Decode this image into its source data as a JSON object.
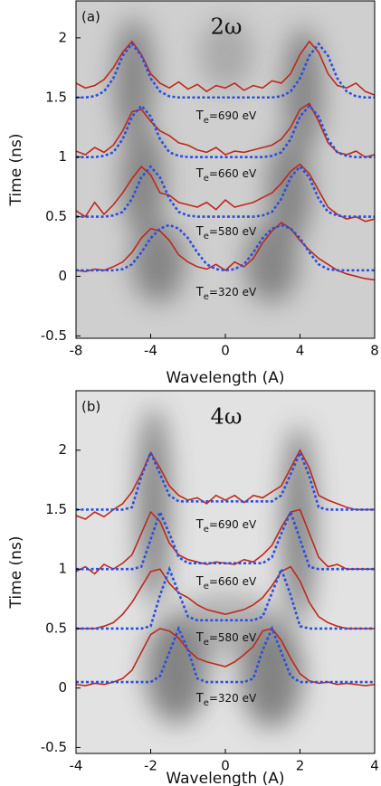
{
  "chart_data": [
    {
      "type": "line",
      "label": "(a)",
      "title": "2ω",
      "xlabel": "Wavelength (A)",
      "ylabel": "Time (ns)",
      "xlim": [
        -8,
        8
      ],
      "xticks": [
        -8,
        -4,
        0,
        4,
        8
      ],
      "ylim": [
        -0.52,
        2.31
      ],
      "yticks": [
        -0.5,
        0,
        0.5,
        1,
        1.5,
        2
      ],
      "x": [
        -8,
        -7.5,
        -7,
        -6.5,
        -6,
        -5.5,
        -5,
        -4.5,
        -4,
        -3.5,
        -3,
        -2.5,
        -2,
        -1.5,
        -1,
        -0.5,
        0,
        0.5,
        1,
        1.5,
        2,
        2.5,
        3,
        3.5,
        4,
        4.5,
        5,
        5.5,
        6,
        6.5,
        7,
        7.5,
        8
      ],
      "series": [
        {
          "color": "#c0281b",
          "style": "solid",
          "values": [
            1.62,
            1.58,
            1.6,
            1.65,
            1.75,
            1.88,
            1.97,
            1.86,
            1.7,
            1.62,
            1.58,
            1.63,
            1.57,
            1.61,
            1.55,
            1.6,
            1.58,
            1.62,
            1.56,
            1.6,
            1.58,
            1.64,
            1.62,
            1.7,
            1.86,
            1.97,
            1.88,
            1.7,
            1.6,
            1.58,
            1.62,
            1.55,
            1.52
          ]
        },
        {
          "color": "#c0281b",
          "style": "solid",
          "values": [
            1.05,
            1.02,
            1.08,
            1.04,
            1.1,
            1.22,
            1.38,
            1.4,
            1.3,
            1.22,
            1.18,
            1.12,
            1.1,
            1.06,
            1.04,
            1.08,
            1.02,
            1.05,
            1.04,
            1.06,
            1.08,
            1.1,
            1.15,
            1.25,
            1.4,
            1.45,
            1.3,
            1.12,
            1.04,
            1.02,
            1.05,
            1.0,
            1.02
          ]
        },
        {
          "color": "#c0281b",
          "style": "solid",
          "values": [
            0.55,
            0.5,
            0.62,
            0.52,
            0.6,
            0.7,
            0.82,
            0.92,
            0.85,
            0.7,
            0.68,
            0.62,
            0.6,
            0.58,
            0.62,
            0.56,
            0.64,
            0.58,
            0.6,
            0.62,
            0.66,
            0.7,
            0.78,
            0.88,
            0.94,
            0.86,
            0.72,
            0.58,
            0.52,
            0.48,
            0.5,
            0.46,
            0.48
          ]
        },
        {
          "color": "#c0281b",
          "style": "solid",
          "values": [
            0.05,
            0.04,
            0.06,
            0.05,
            0.08,
            0.12,
            0.2,
            0.32,
            0.4,
            0.38,
            0.3,
            0.18,
            0.12,
            0.08,
            0.06,
            0.1,
            0.05,
            0.12,
            0.08,
            0.15,
            0.28,
            0.38,
            0.45,
            0.4,
            0.3,
            0.22,
            0.15,
            0.1,
            0.05,
            0.02,
            0.0,
            -0.02,
            -0.03
          ]
        },
        {
          "color": "#2a4fe0",
          "style": "dotted",
          "values": [
            1.5,
            1.5,
            1.51,
            1.55,
            1.66,
            1.85,
            1.95,
            1.85,
            1.66,
            1.55,
            1.51,
            1.5,
            1.5,
            1.5,
            1.5,
            1.5,
            1.5,
            1.5,
            1.5,
            1.5,
            1.5,
            1.5,
            1.51,
            1.55,
            1.66,
            1.85,
            1.95,
            1.85,
            1.66,
            1.55,
            1.51,
            1.5,
            1.5
          ]
        },
        {
          "color": "#2a4fe0",
          "style": "dotted",
          "values": [
            1.0,
            1.0,
            1.0,
            1.01,
            1.04,
            1.15,
            1.34,
            1.43,
            1.34,
            1.15,
            1.04,
            1.01,
            1.0,
            1.0,
            1.0,
            1.0,
            1.0,
            1.0,
            1.0,
            1.0,
            1.0,
            1.01,
            1.04,
            1.15,
            1.34,
            1.43,
            1.34,
            1.15,
            1.04,
            1.01,
            1.0,
            1.0,
            1.0
          ]
        },
        {
          "color": "#2a4fe0",
          "style": "dotted",
          "values": [
            0.5,
            0.5,
            0.5,
            0.5,
            0.51,
            0.54,
            0.65,
            0.83,
            0.92,
            0.83,
            0.65,
            0.54,
            0.51,
            0.5,
            0.5,
            0.5,
            0.5,
            0.5,
            0.5,
            0.5,
            0.51,
            0.54,
            0.65,
            0.83,
            0.92,
            0.83,
            0.65,
            0.54,
            0.51,
            0.5,
            0.5,
            0.5,
            0.5
          ]
        },
        {
          "color": "#2a4fe0",
          "style": "dotted",
          "values": [
            0.05,
            0.05,
            0.05,
            0.05,
            0.05,
            0.06,
            0.1,
            0.2,
            0.32,
            0.4,
            0.43,
            0.4,
            0.32,
            0.2,
            0.1,
            0.06,
            0.05,
            0.06,
            0.1,
            0.2,
            0.32,
            0.4,
            0.43,
            0.4,
            0.32,
            0.2,
            0.1,
            0.06,
            0.05,
            0.05,
            0.05,
            0.05,
            0.05
          ]
        }
      ],
      "annotations": [
        {
          "base": "T",
          "sub": "e",
          "text": "=690 eV"
        },
        {
          "base": "T",
          "sub": "e",
          "text": "=660 eV"
        },
        {
          "base": "T",
          "sub": "e",
          "text": "=580 eV"
        },
        {
          "base": "T",
          "sub": "e",
          "text": "=320 eV"
        }
      ]
    },
    {
      "type": "line",
      "label": "(b)",
      "title": "4ω",
      "xlabel": "Wavelength (A)",
      "ylabel": "Time (ns)",
      "xlim": [
        -4,
        4
      ],
      "xticks": [
        -4,
        -2,
        0,
        2,
        4
      ],
      "ylim": [
        -0.55,
        2.5
      ],
      "yticks": [
        -0.5,
        0,
        0.5,
        1,
        1.5,
        2
      ],
      "x": [
        -4,
        -3.75,
        -3.5,
        -3.25,
        -3,
        -2.75,
        -2.5,
        -2.25,
        -2,
        -1.75,
        -1.5,
        -1.25,
        -1,
        -0.75,
        -0.5,
        -0.25,
        0,
        0.25,
        0.5,
        0.75,
        1,
        1.25,
        1.5,
        1.75,
        2,
        2.25,
        2.5,
        2.75,
        3,
        3.25,
        3.5,
        3.75,
        4
      ],
      "series": [
        {
          "color": "#c0281b",
          "style": "solid",
          "values": [
            1.45,
            1.42,
            1.48,
            1.44,
            1.5,
            1.55,
            1.65,
            1.8,
            1.98,
            1.85,
            1.7,
            1.62,
            1.58,
            1.6,
            1.55,
            1.62,
            1.58,
            1.62,
            1.56,
            1.62,
            1.6,
            1.65,
            1.7,
            1.85,
            2.0,
            1.85,
            1.62,
            1.58,
            1.55,
            1.52,
            1.5,
            1.5,
            1.5
          ]
        },
        {
          "color": "#c0281b",
          "style": "solid",
          "values": [
            0.98,
            1.02,
            0.96,
            1.04,
            1.0,
            1.05,
            1.12,
            1.3,
            1.48,
            1.4,
            1.22,
            1.12,
            1.08,
            1.06,
            1.04,
            1.06,
            1.05,
            1.04,
            1.08,
            1.06,
            1.12,
            1.2,
            1.35,
            1.48,
            1.5,
            1.3,
            1.1,
            1.02,
            1.04,
            1.0,
            1.0,
            1.0,
            1.0
          ]
        },
        {
          "color": "#c0281b",
          "style": "solid",
          "values": [
            0.5,
            0.5,
            0.5,
            0.52,
            0.55,
            0.62,
            0.72,
            0.85,
            0.98,
            1.0,
            0.88,
            0.8,
            0.76,
            0.7,
            0.66,
            0.64,
            0.62,
            0.64,
            0.66,
            0.7,
            0.76,
            0.86,
            0.98,
            1.02,
            0.9,
            0.72,
            0.6,
            0.55,
            0.52,
            0.5,
            0.5,
            0.5,
            0.5
          ]
        },
        {
          "color": "#c0281b",
          "style": "solid",
          "values": [
            0.03,
            0.02,
            0.04,
            0.03,
            0.05,
            0.08,
            0.15,
            0.3,
            0.45,
            0.5,
            0.48,
            0.42,
            0.32,
            0.25,
            0.22,
            0.2,
            0.18,
            0.22,
            0.28,
            0.35,
            0.48,
            0.5,
            0.4,
            0.25,
            0.12,
            0.06,
            0.04,
            0.05,
            0.03,
            0.04,
            0.03,
            0.02,
            0.03
          ]
        },
        {
          "color": "#2a4fe0",
          "style": "dotted",
          "values": [
            1.5,
            1.5,
            1.5,
            1.5,
            1.5,
            1.5,
            1.52,
            1.78,
            1.98,
            1.8,
            1.62,
            1.57,
            1.57,
            1.57,
            1.57,
            1.57,
            1.57,
            1.57,
            1.57,
            1.57,
            1.57,
            1.57,
            1.62,
            1.8,
            1.98,
            1.78,
            1.52,
            1.5,
            1.5,
            1.5,
            1.5,
            1.5,
            1.5
          ]
        },
        {
          "color": "#2a4fe0",
          "style": "dotted",
          "values": [
            1.0,
            1.0,
            1.0,
            1.0,
            1.0,
            1.0,
            1.0,
            1.02,
            1.25,
            1.48,
            1.3,
            1.1,
            1.05,
            1.05,
            1.05,
            1.05,
            1.05,
            1.05,
            1.05,
            1.05,
            1.05,
            1.1,
            1.3,
            1.48,
            1.25,
            1.02,
            1.0,
            1.0,
            1.0,
            1.0,
            1.0,
            1.0,
            1.0
          ]
        },
        {
          "color": "#2a4fe0",
          "style": "dotted",
          "values": [
            0.5,
            0.5,
            0.5,
            0.5,
            0.5,
            0.5,
            0.5,
            0.5,
            0.52,
            0.78,
            1.0,
            0.8,
            0.6,
            0.57,
            0.57,
            0.57,
            0.57,
            0.57,
            0.57,
            0.57,
            0.6,
            0.8,
            1.0,
            0.78,
            0.52,
            0.5,
            0.5,
            0.5,
            0.5,
            0.5,
            0.5,
            0.5,
            0.5
          ]
        },
        {
          "color": "#2a4fe0",
          "style": "dotted",
          "values": [
            0.05,
            0.05,
            0.05,
            0.05,
            0.05,
            0.05,
            0.05,
            0.05,
            0.05,
            0.1,
            0.3,
            0.5,
            0.32,
            0.08,
            0.05,
            0.05,
            0.05,
            0.05,
            0.05,
            0.08,
            0.32,
            0.5,
            0.3,
            0.1,
            0.05,
            0.05,
            0.05,
            0.05,
            0.05,
            0.05,
            0.05,
            0.05,
            0.05
          ]
        }
      ],
      "annotations": [
        {
          "base": "T",
          "sub": "e",
          "text": "=690 eV"
        },
        {
          "base": "T",
          "sub": "e",
          "text": "=660 eV"
        },
        {
          "base": "T",
          "sub": "e",
          "text": "=580 eV"
        },
        {
          "base": "T",
          "sub": "e",
          "text": "=320 eV"
        }
      ]
    }
  ]
}
